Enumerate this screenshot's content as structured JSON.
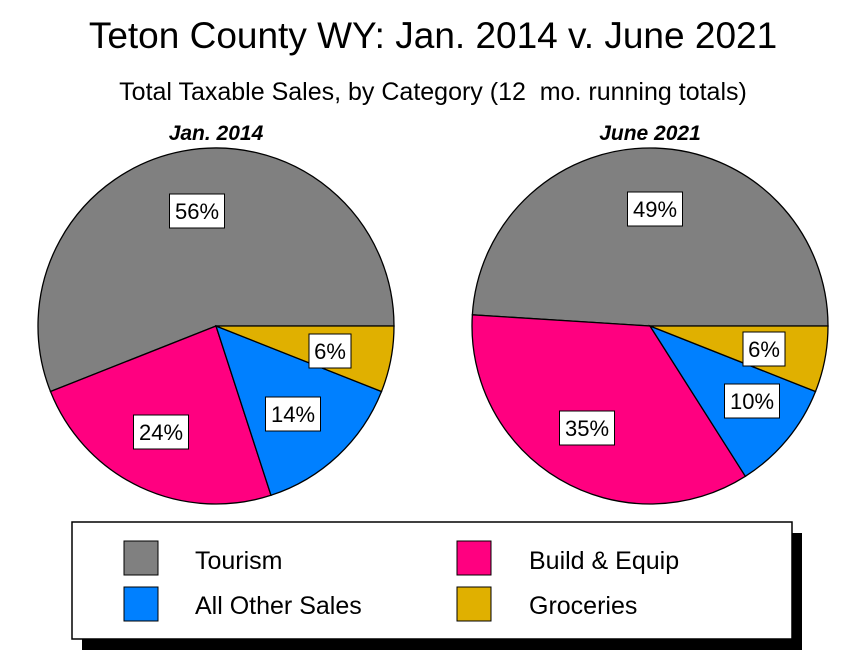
{
  "chart_data": {
    "type": "pie",
    "title": "Teton County WY: Jan. 2014 v. June 2021",
    "subtitle": "Total Taxable Sales, by Category (12  mo. running totals)",
    "categories": [
      "Tourism",
      "Build & Equip",
      "All Other Sales",
      "Groceries"
    ],
    "colors": {
      "Tourism": "#808080",
      "Build & Equip": "#ff0080",
      "All Other Sales": "#0080ff",
      "Groceries": "#e0b000"
    },
    "pies": [
      {
        "title": "Jan. 2014",
        "values": [
          56,
          24,
          14,
          6
        ],
        "labels": [
          "56%",
          "24%",
          "14%",
          "6%"
        ]
      },
      {
        "title": "June 2021",
        "values": [
          49,
          35,
          10,
          6
        ],
        "labels": [
          "49%",
          "35%",
          "10%",
          "6%"
        ]
      }
    ],
    "legend": {
      "position": "bottom",
      "items": [
        {
          "label": "Tourism",
          "category": "Tourism"
        },
        {
          "label": "Build & Equip",
          "category": "Build & Equip"
        },
        {
          "label": "All Other Sales",
          "category": "All Other Sales"
        },
        {
          "label": "Groceries",
          "category": "Groceries"
        }
      ]
    }
  }
}
